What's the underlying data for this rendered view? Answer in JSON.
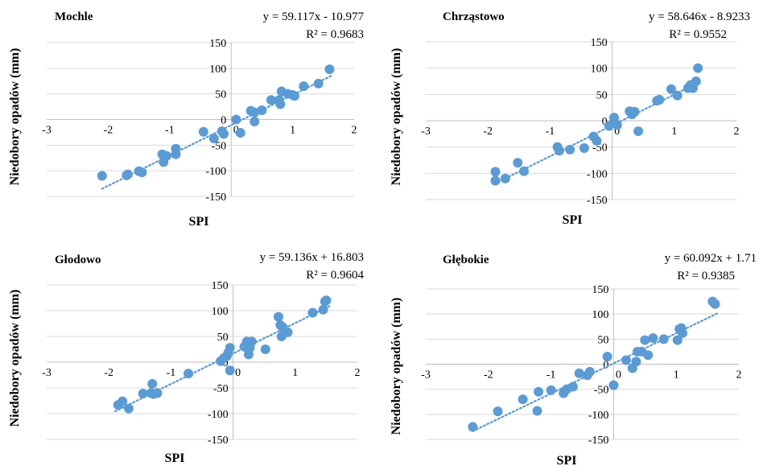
{
  "chart_data": [
    {
      "type": "scatter",
      "title": "Mochle",
      "xlabel": "SPI",
      "ylabel": "Niedobory opadów  (mm)",
      "equation": "y = 59.117x  - 10.977",
      "r2": "R² = 0.9683",
      "xlim": [
        -3,
        2
      ],
      "ylim": [
        -150,
        150
      ],
      "xticks": [
        "-3",
        "-2",
        "-1",
        "0",
        "1",
        "2"
      ],
      "yticks": [
        "150",
        "100",
        "50",
        "0",
        "-50",
        "-100",
        "-150"
      ],
      "trend": {
        "slope": 59.117,
        "intercept": -10.977,
        "x_range": [
          -2.1,
          1.65
        ]
      },
      "points": [
        [
          -2.1,
          -110
        ],
        [
          -1.7,
          -109
        ],
        [
          -1.68,
          -107
        ],
        [
          -1.5,
          -101
        ],
        [
          -1.45,
          -103
        ],
        [
          -1.12,
          -68
        ],
        [
          -1.1,
          -83
        ],
        [
          -1.05,
          -71
        ],
        [
          -0.9,
          -57
        ],
        [
          -0.9,
          -68
        ],
        [
          -0.45,
          -24
        ],
        [
          -0.28,
          -37
        ],
        [
          -0.15,
          -23
        ],
        [
          -0.12,
          -28
        ],
        [
          0.08,
          0
        ],
        [
          0.15,
          -26
        ],
        [
          0.32,
          17
        ],
        [
          0.38,
          14
        ],
        [
          0.38,
          -4
        ],
        [
          0.5,
          18
        ],
        [
          0.65,
          38
        ],
        [
          0.78,
          38
        ],
        [
          0.8,
          30
        ],
        [
          0.82,
          55
        ],
        [
          0.92,
          50
        ],
        [
          1.0,
          48
        ],
        [
          1.03,
          46
        ],
        [
          1.18,
          65
        ],
        [
          1.42,
          70
        ],
        [
          1.6,
          98
        ]
      ]
    },
    {
      "type": "scatter",
      "title": "Chrząstowo",
      "xlabel": "SPI",
      "ylabel": "Niedobory opadów  (mm)",
      "equation": "y = 58.646x  - 8.9233",
      "r2": "R² = 0.9552",
      "xlim": [
        -3,
        2
      ],
      "ylim": [
        -150,
        150
      ],
      "xticks": [
        "-3",
        "-2",
        "-1",
        "0",
        "1",
        "2"
      ],
      "yticks": [
        "150",
        "100",
        "50",
        "0",
        "-50",
        "-100",
        "-150"
      ],
      "trend": {
        "slope": 58.646,
        "intercept": -8.9233,
        "x_range": [
          -1.9,
          1.4
        ]
      },
      "points": [
        [
          -1.88,
          -97
        ],
        [
          -1.88,
          -114
        ],
        [
          -1.72,
          -110
        ],
        [
          -1.52,
          -80
        ],
        [
          -1.42,
          -96
        ],
        [
          -0.88,
          -50
        ],
        [
          -0.85,
          -57
        ],
        [
          -0.68,
          -55
        ],
        [
          -0.45,
          -52
        ],
        [
          -0.3,
          -30
        ],
        [
          -0.25,
          -38
        ],
        [
          -0.05,
          -10
        ],
        [
          0.03,
          -2
        ],
        [
          0.03,
          6
        ],
        [
          0.08,
          -8
        ],
        [
          0.28,
          18
        ],
        [
          0.32,
          12
        ],
        [
          0.36,
          17
        ],
        [
          0.42,
          -20
        ],
        [
          0.72,
          38
        ],
        [
          0.76,
          40
        ],
        [
          0.95,
          60
        ],
        [
          1.05,
          48
        ],
        [
          1.22,
          62
        ],
        [
          1.26,
          68
        ],
        [
          1.3,
          62
        ],
        [
          1.35,
          75
        ],
        [
          1.38,
          100
        ]
      ]
    },
    {
      "type": "scatter",
      "title": "Głodowo",
      "xlabel": "SPI",
      "ylabel": "Niedobory opadów  (mm)",
      "equation": "y = 59.136x  + 16.803",
      "r2": "R² = 0.9604",
      "xlim": [
        -3,
        2
      ],
      "ylim": [
        -150,
        150
      ],
      "xticks": [
        "-3",
        "-2",
        "-1",
        "0",
        "1",
        "2"
      ],
      "yticks": [
        "150",
        "100",
        "50",
        "0",
        "-50",
        "-100",
        "-150"
      ],
      "trend": {
        "slope": 59.136,
        "intercept": 16.803,
        "x_range": [
          -1.9,
          1.55
        ]
      },
      "points": [
        [
          -1.85,
          -83
        ],
        [
          -1.78,
          -76
        ],
        [
          -1.68,
          -90
        ],
        [
          -1.45,
          -61
        ],
        [
          -1.32,
          -60
        ],
        [
          -1.3,
          -42
        ],
        [
          -1.28,
          -62
        ],
        [
          -1.22,
          -60
        ],
        [
          -0.72,
          -22
        ],
        [
          -0.2,
          2
        ],
        [
          -0.15,
          8
        ],
        [
          -0.1,
          12
        ],
        [
          -0.08,
          18
        ],
        [
          -0.05,
          28
        ],
        [
          -0.05,
          -16
        ],
        [
          0.18,
          30
        ],
        [
          0.22,
          40
        ],
        [
          0.25,
          15
        ],
        [
          0.27,
          28
        ],
        [
          0.3,
          40
        ],
        [
          0.52,
          25
        ],
        [
          0.73,
          88
        ],
        [
          0.76,
          72
        ],
        [
          0.8,
          68
        ],
        [
          0.78,
          50
        ],
        [
          0.88,
          58
        ],
        [
          1.28,
          96
        ],
        [
          1.45,
          102
        ],
        [
          1.48,
          118
        ],
        [
          1.5,
          120
        ]
      ]
    },
    {
      "type": "scatter",
      "title": "Głębokie",
      "xlabel": "SPI",
      "ylabel": "Niedobory opadów  (mm)",
      "equation": "y = 60.092x  + 1.71",
      "r2": "R² = 0.9385",
      "xlim": [
        -3,
        2
      ],
      "ylim": [
        -150,
        150
      ],
      "xticks": [
        "-3",
        "-2",
        "-1",
        "0",
        "1",
        "2"
      ],
      "yticks": [
        "150",
        "100",
        "50",
        "0",
        "-50",
        "-100",
        "-150"
      ],
      "trend": {
        "slope": 60.092,
        "intercept": 1.71,
        "x_range": [
          -2.25,
          1.65
        ]
      },
      "points": [
        [
          -2.25,
          -125
        ],
        [
          -1.85,
          -94
        ],
        [
          -1.45,
          -70
        ],
        [
          -1.22,
          -93
        ],
        [
          -1.2,
          -55
        ],
        [
          -1.0,
          -52
        ],
        [
          -0.8,
          -58
        ],
        [
          -0.75,
          -50
        ],
        [
          -0.65,
          -45
        ],
        [
          -0.55,
          -18
        ],
        [
          -0.42,
          -22
        ],
        [
          -0.38,
          -15
        ],
        [
          -0.1,
          15
        ],
        [
          0.0,
          -42
        ],
        [
          0.2,
          8
        ],
        [
          0.3,
          -8
        ],
        [
          0.36,
          5
        ],
        [
          0.38,
          25
        ],
        [
          0.45,
          25
        ],
        [
          0.5,
          48
        ],
        [
          0.55,
          18
        ],
        [
          0.63,
          52
        ],
        [
          0.8,
          50
        ],
        [
          1.02,
          48
        ],
        [
          1.05,
          70
        ],
        [
          1.08,
          72
        ],
        [
          1.1,
          62
        ],
        [
          1.58,
          125
        ],
        [
          1.62,
          120
        ]
      ]
    }
  ]
}
